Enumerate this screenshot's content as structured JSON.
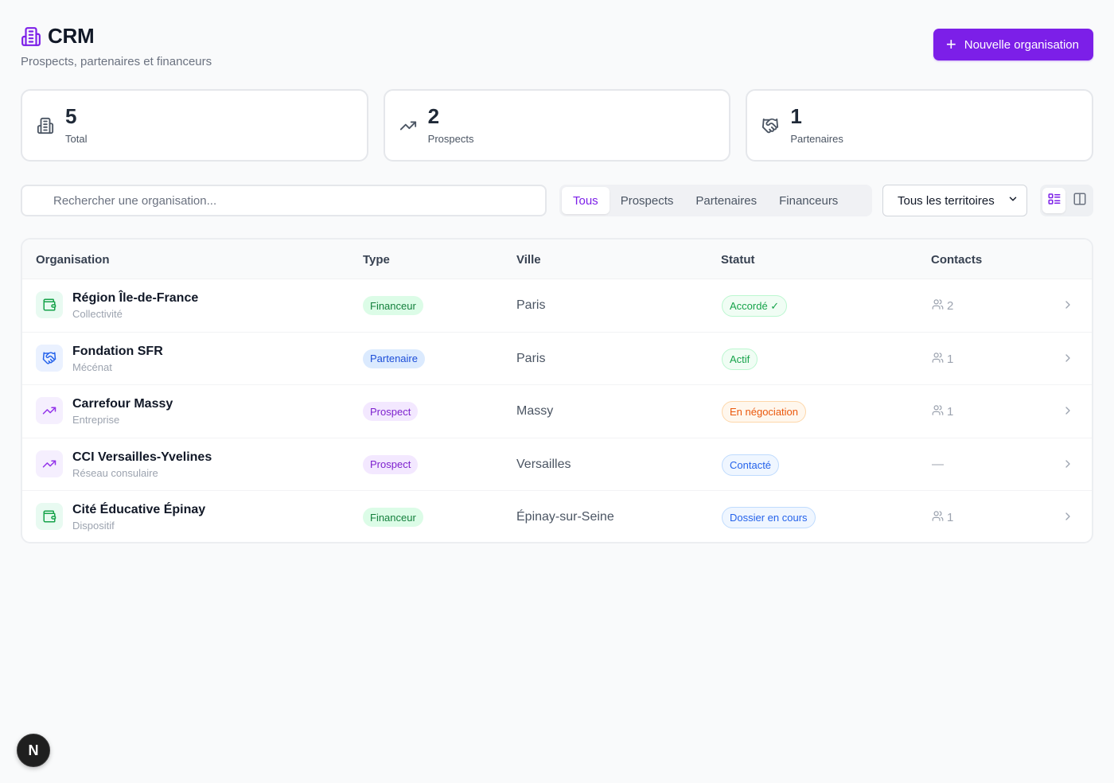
{
  "header": {
    "title": "CRM",
    "subtitle": "Prospects, partenaires et financeurs",
    "new_button": "Nouvelle organisation",
    "accent": "#7c1fe8"
  },
  "stats": [
    {
      "value": "5",
      "label": "Total",
      "icon": "building-icon"
    },
    {
      "value": "2",
      "label": "Prospects",
      "icon": "trending-up-icon"
    },
    {
      "value": "1",
      "label": "Partenaires",
      "icon": "handshake-icon"
    }
  ],
  "toolbar": {
    "search_placeholder": "Rechercher une organisation...",
    "tabs": [
      "Tous",
      "Prospects",
      "Partenaires",
      "Financeurs"
    ],
    "active_tab": "Tous",
    "territory_select": "Tous les territoires"
  },
  "table": {
    "headers": [
      "Organisation",
      "Type",
      "Ville",
      "Statut",
      "Contacts"
    ],
    "rows": [
      {
        "name": "Région Île-de-France",
        "sub": "Collectivité",
        "type": "Financeur",
        "city": "Paris",
        "status": "Accordé ✓",
        "contacts": "2",
        "icon": "wallet-icon"
      },
      {
        "name": "Fondation SFR",
        "sub": "Mécénat",
        "type": "Partenaire",
        "city": "Paris",
        "status": "Actif",
        "contacts": "1",
        "icon": "handshake-icon"
      },
      {
        "name": "Carrefour Massy",
        "sub": "Entreprise",
        "type": "Prospect",
        "city": "Massy",
        "status": "En négociation",
        "contacts": "1",
        "icon": "trending-up-icon"
      },
      {
        "name": "CCI Versailles-Yvelines",
        "sub": "Réseau consulaire",
        "type": "Prospect",
        "city": "Versailles",
        "status": "Contacté",
        "contacts": "—",
        "icon": "trending-up-icon"
      },
      {
        "name": "Cité Éducative Épinay",
        "sub": "Dispositif",
        "type": "Financeur",
        "city": "Épinay-sur-Seine",
        "status": "Dossier en cours",
        "contacts": "1",
        "icon": "wallet-icon"
      }
    ]
  },
  "dev_badge": "N"
}
